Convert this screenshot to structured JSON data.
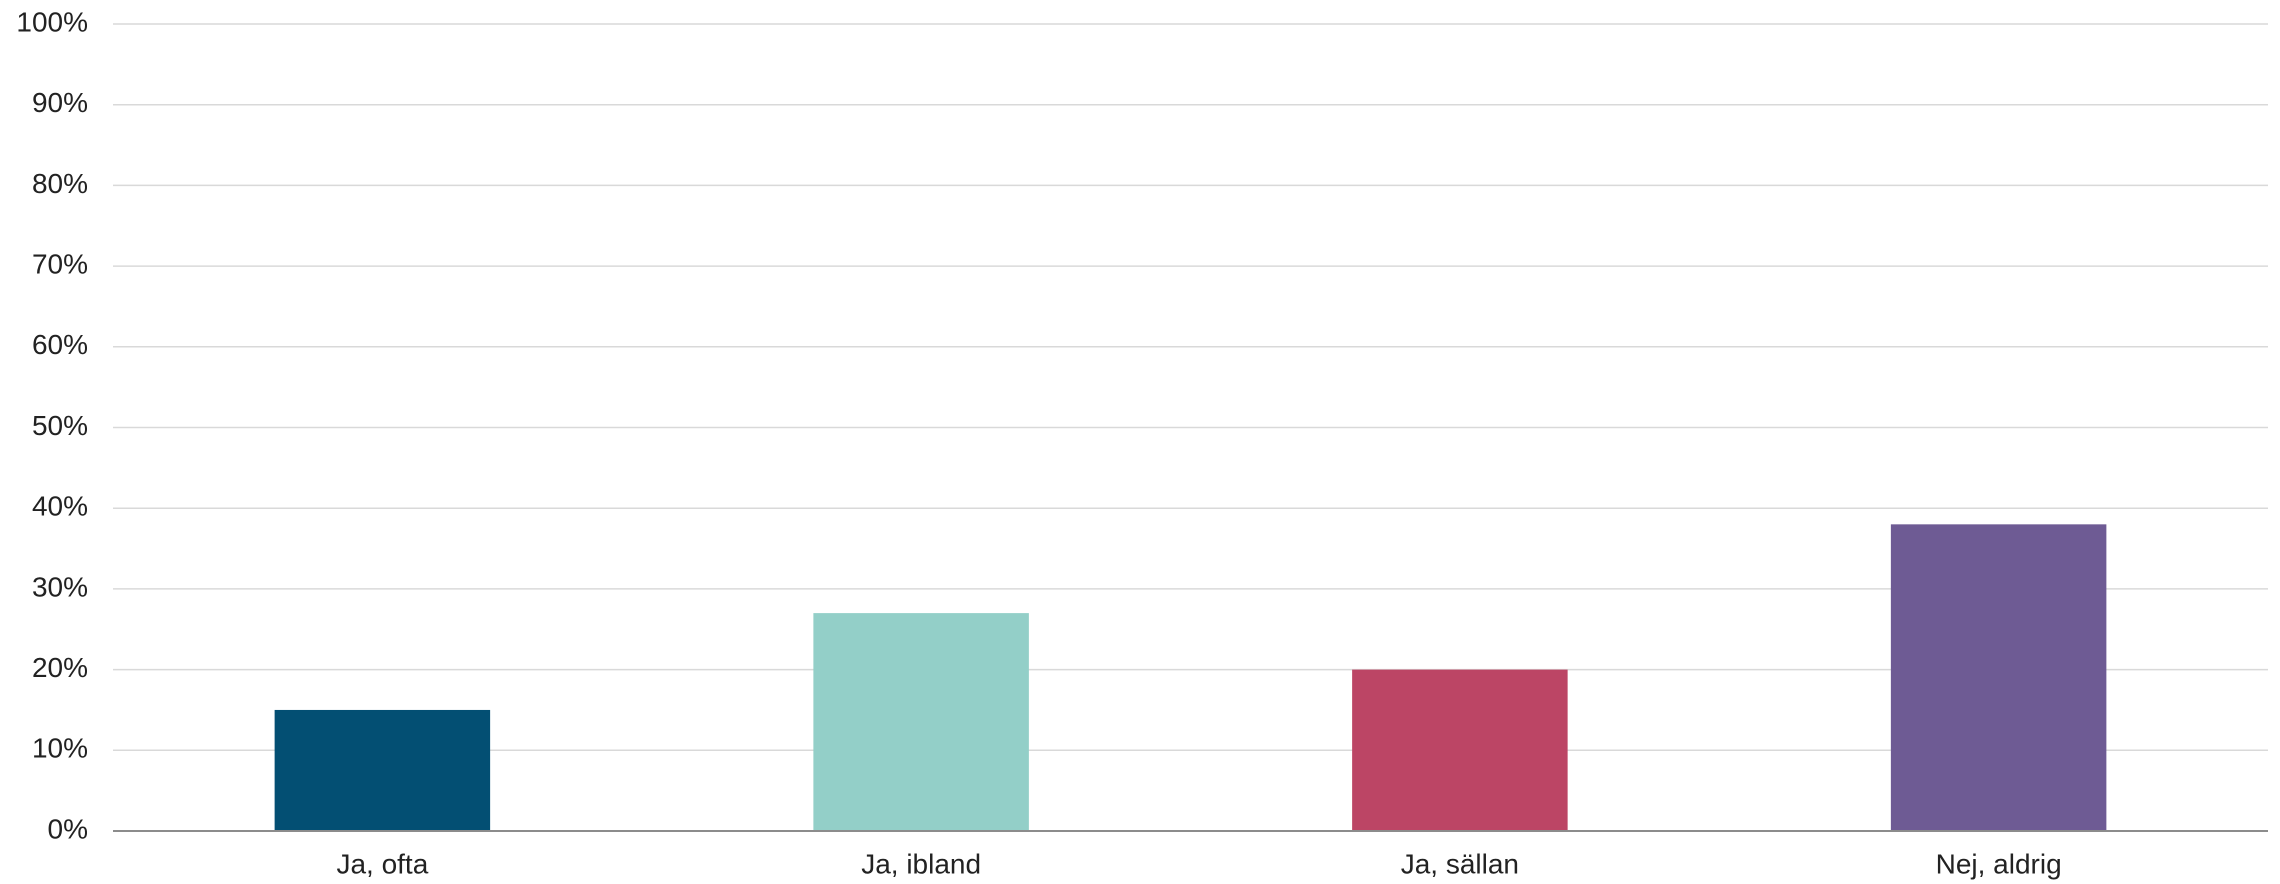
{
  "chart_data": {
    "type": "bar",
    "categories": [
      "Ja, ofta",
      "Ja, ibland",
      "Ja, sällan",
      "Nej, aldrig"
    ],
    "values": [
      15,
      27,
      20,
      38
    ],
    "colors": [
      "#034f73",
      "#93cfc8",
      "#bc4565",
      "#6e5b94"
    ],
    "ylim": [
      0,
      100
    ],
    "yticks": [
      "0%",
      "10%",
      "20%",
      "30%",
      "40%",
      "50%",
      "60%",
      "70%",
      "80%",
      "90%",
      "100%"
    ],
    "grid": true,
    "legend": "none"
  }
}
